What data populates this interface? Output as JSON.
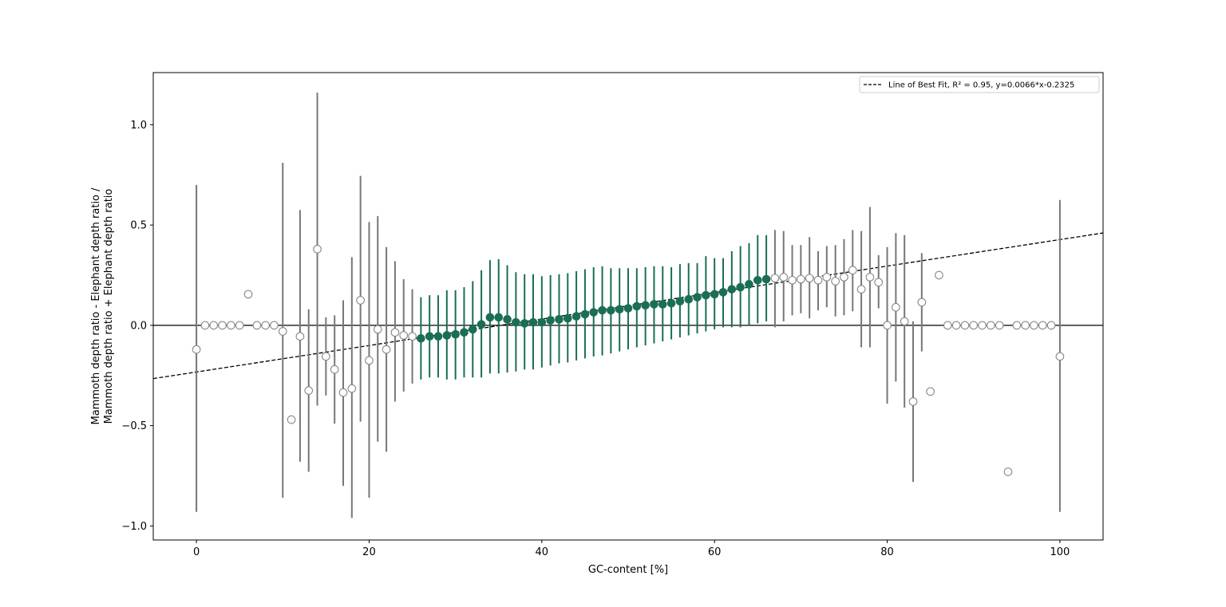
{
  "chart_data": {
    "type": "scatter",
    "title": "",
    "xlabel": "GC-content [%]",
    "ylabel_lines": [
      "Mammoth depth ratio - Elephant depth ratio /",
      "Mammoth depth ratio + Elephant depth ratio"
    ],
    "xlim": [
      -5,
      105
    ],
    "ylim": [
      -1.07,
      1.26
    ],
    "x_ticks": [
      0,
      20,
      40,
      60,
      80,
      100
    ],
    "x_tick_labels": [
      "0",
      "20",
      "40",
      "60",
      "80",
      "100"
    ],
    "y_ticks": [
      -1.0,
      -0.5,
      0.0,
      0.5,
      1.0
    ],
    "y_tick_labels": [
      "−1.0",
      "−0.5",
      "0.0",
      "0.5",
      "1.0"
    ],
    "grid": false,
    "legend": {
      "placement": "top-right",
      "entries": [
        "Line of Best Fit, R² = 0.95, y=0.0066*x-0.2325"
      ]
    },
    "fit_line": {
      "slope": 0.0066,
      "intercept": -0.2325,
      "style": "dashed",
      "color": "#000000"
    },
    "zero_line": {
      "y": 0.0,
      "color": "#000000"
    },
    "colors": {
      "fit_range": "#1b6e56",
      "outside": "#777777",
      "open_marker_edge": "#888888"
    },
    "points": [
      {
        "x": 0,
        "y": -0.12,
        "lo": -0.93,
        "hi": 0.7,
        "in_fit": false
      },
      {
        "x": 1,
        "y": 0.0,
        "lo": null,
        "hi": null,
        "in_fit": false
      },
      {
        "x": 2,
        "y": 0.0,
        "lo": null,
        "hi": null,
        "in_fit": false
      },
      {
        "x": 3,
        "y": 0.0,
        "lo": null,
        "hi": null,
        "in_fit": false
      },
      {
        "x": 4,
        "y": 0.0,
        "lo": null,
        "hi": null,
        "in_fit": false
      },
      {
        "x": 5,
        "y": 0.0,
        "lo": null,
        "hi": null,
        "in_fit": false
      },
      {
        "x": 6,
        "y": 0.155,
        "lo": null,
        "hi": null,
        "in_fit": false
      },
      {
        "x": 7,
        "y": 0.0,
        "lo": null,
        "hi": null,
        "in_fit": false
      },
      {
        "x": 8,
        "y": 0.0,
        "lo": null,
        "hi": null,
        "in_fit": false
      },
      {
        "x": 9,
        "y": 0.0,
        "lo": null,
        "hi": null,
        "in_fit": false
      },
      {
        "x": 10,
        "y": -0.03,
        "lo": -0.86,
        "hi": 0.81,
        "in_fit": false
      },
      {
        "x": 11,
        "y": -0.47,
        "lo": null,
        "hi": null,
        "in_fit": false
      },
      {
        "x": 12,
        "y": -0.055,
        "lo": -0.68,
        "hi": 0.575,
        "in_fit": false
      },
      {
        "x": 13,
        "y": -0.325,
        "lo": -0.73,
        "hi": 0.08,
        "in_fit": false
      },
      {
        "x": 14,
        "y": 0.38,
        "lo": -0.4,
        "hi": 1.16,
        "in_fit": false
      },
      {
        "x": 15,
        "y": -0.155,
        "lo": -0.35,
        "hi": 0.04,
        "in_fit": false
      },
      {
        "x": 16,
        "y": -0.22,
        "lo": -0.49,
        "hi": 0.05,
        "in_fit": false
      },
      {
        "x": 17,
        "y": -0.335,
        "lo": -0.8,
        "hi": 0.125,
        "in_fit": false
      },
      {
        "x": 18,
        "y": -0.315,
        "lo": -0.96,
        "hi": 0.34,
        "in_fit": false
      },
      {
        "x": 19,
        "y": 0.125,
        "lo": -0.48,
        "hi": 0.745,
        "in_fit": false
      },
      {
        "x": 20,
        "y": -0.175,
        "lo": -0.86,
        "hi": 0.515,
        "in_fit": false
      },
      {
        "x": 21,
        "y": -0.02,
        "lo": -0.58,
        "hi": 0.545,
        "in_fit": false
      },
      {
        "x": 22,
        "y": -0.12,
        "lo": -0.63,
        "hi": 0.39,
        "in_fit": false
      },
      {
        "x": 23,
        "y": -0.035,
        "lo": -0.38,
        "hi": 0.32,
        "in_fit": false
      },
      {
        "x": 24,
        "y": -0.05,
        "lo": -0.33,
        "hi": 0.23,
        "in_fit": false
      },
      {
        "x": 25,
        "y": -0.055,
        "lo": -0.29,
        "hi": 0.18,
        "in_fit": false
      },
      {
        "x": 26,
        "y": -0.065,
        "lo": -0.27,
        "hi": 0.14,
        "in_fit": true
      },
      {
        "x": 27,
        "y": -0.055,
        "lo": -0.26,
        "hi": 0.15,
        "in_fit": true
      },
      {
        "x": 28,
        "y": -0.055,
        "lo": -0.26,
        "hi": 0.15,
        "in_fit": true
      },
      {
        "x": 29,
        "y": -0.05,
        "lo": -0.27,
        "hi": 0.175,
        "in_fit": true
      },
      {
        "x": 30,
        "y": -0.045,
        "lo": -0.27,
        "hi": 0.175,
        "in_fit": true
      },
      {
        "x": 31,
        "y": -0.035,
        "lo": -0.26,
        "hi": 0.19,
        "in_fit": true
      },
      {
        "x": 32,
        "y": -0.02,
        "lo": -0.26,
        "hi": 0.22,
        "in_fit": true
      },
      {
        "x": 33,
        "y": 0.005,
        "lo": -0.26,
        "hi": 0.275,
        "in_fit": true
      },
      {
        "x": 34,
        "y": 0.04,
        "lo": -0.24,
        "hi": 0.325,
        "in_fit": true
      },
      {
        "x": 35,
        "y": 0.04,
        "lo": -0.24,
        "hi": 0.33,
        "in_fit": true
      },
      {
        "x": 36,
        "y": 0.03,
        "lo": -0.235,
        "hi": 0.3,
        "in_fit": true
      },
      {
        "x": 37,
        "y": 0.015,
        "lo": -0.23,
        "hi": 0.265,
        "in_fit": true
      },
      {
        "x": 38,
        "y": 0.01,
        "lo": -0.22,
        "hi": 0.255,
        "in_fit": true
      },
      {
        "x": 39,
        "y": 0.015,
        "lo": -0.22,
        "hi": 0.255,
        "in_fit": true
      },
      {
        "x": 40,
        "y": 0.015,
        "lo": -0.21,
        "hi": 0.245,
        "in_fit": true
      },
      {
        "x": 41,
        "y": 0.025,
        "lo": -0.2,
        "hi": 0.25,
        "in_fit": true
      },
      {
        "x": 42,
        "y": 0.03,
        "lo": -0.19,
        "hi": 0.255,
        "in_fit": true
      },
      {
        "x": 43,
        "y": 0.035,
        "lo": -0.185,
        "hi": 0.26,
        "in_fit": true
      },
      {
        "x": 44,
        "y": 0.045,
        "lo": -0.175,
        "hi": 0.27,
        "in_fit": true
      },
      {
        "x": 45,
        "y": 0.055,
        "lo": -0.165,
        "hi": 0.28,
        "in_fit": true
      },
      {
        "x": 46,
        "y": 0.065,
        "lo": -0.155,
        "hi": 0.29,
        "in_fit": true
      },
      {
        "x": 47,
        "y": 0.075,
        "lo": -0.15,
        "hi": 0.295,
        "in_fit": true
      },
      {
        "x": 48,
        "y": 0.075,
        "lo": -0.14,
        "hi": 0.285,
        "in_fit": true
      },
      {
        "x": 49,
        "y": 0.08,
        "lo": -0.13,
        "hi": 0.285,
        "in_fit": true
      },
      {
        "x": 50,
        "y": 0.085,
        "lo": -0.12,
        "hi": 0.285,
        "in_fit": true
      },
      {
        "x": 51,
        "y": 0.095,
        "lo": -0.11,
        "hi": 0.285,
        "in_fit": true
      },
      {
        "x": 52,
        "y": 0.1,
        "lo": -0.1,
        "hi": 0.29,
        "in_fit": true
      },
      {
        "x": 53,
        "y": 0.105,
        "lo": -0.09,
        "hi": 0.295,
        "in_fit": true
      },
      {
        "x": 54,
        "y": 0.105,
        "lo": -0.08,
        "hi": 0.295,
        "in_fit": true
      },
      {
        "x": 55,
        "y": 0.11,
        "lo": -0.07,
        "hi": 0.29,
        "in_fit": true
      },
      {
        "x": 56,
        "y": 0.12,
        "lo": -0.06,
        "hi": 0.305,
        "in_fit": true
      },
      {
        "x": 57,
        "y": 0.13,
        "lo": -0.05,
        "hi": 0.31,
        "in_fit": true
      },
      {
        "x": 58,
        "y": 0.14,
        "lo": -0.04,
        "hi": 0.31,
        "in_fit": true
      },
      {
        "x": 59,
        "y": 0.15,
        "lo": -0.03,
        "hi": 0.345,
        "in_fit": true
      },
      {
        "x": 60,
        "y": 0.155,
        "lo": -0.02,
        "hi": 0.335,
        "in_fit": true
      },
      {
        "x": 61,
        "y": 0.165,
        "lo": -0.01,
        "hi": 0.335,
        "in_fit": true
      },
      {
        "x": 62,
        "y": 0.18,
        "lo": -0.01,
        "hi": 0.37,
        "in_fit": true
      },
      {
        "x": 63,
        "y": 0.19,
        "lo": -0.01,
        "hi": 0.395,
        "in_fit": true
      },
      {
        "x": 64,
        "y": 0.205,
        "lo": 0.0,
        "hi": 0.41,
        "in_fit": true
      },
      {
        "x": 65,
        "y": 0.225,
        "lo": 0.01,
        "hi": 0.45,
        "in_fit": true
      },
      {
        "x": 66,
        "y": 0.23,
        "lo": 0.02,
        "hi": 0.45,
        "in_fit": true
      },
      {
        "x": 67,
        "y": 0.235,
        "lo": -0.01,
        "hi": 0.475,
        "in_fit": false
      },
      {
        "x": 68,
        "y": 0.24,
        "lo": 0.02,
        "hi": 0.47,
        "in_fit": false
      },
      {
        "x": 69,
        "y": 0.225,
        "lo": 0.05,
        "hi": 0.4,
        "in_fit": false
      },
      {
        "x": 70,
        "y": 0.23,
        "lo": 0.06,
        "hi": 0.4,
        "in_fit": false
      },
      {
        "x": 71,
        "y": 0.235,
        "lo": 0.035,
        "hi": 0.44,
        "in_fit": false
      },
      {
        "x": 72,
        "y": 0.225,
        "lo": 0.075,
        "hi": 0.37,
        "in_fit": false
      },
      {
        "x": 73,
        "y": 0.24,
        "lo": 0.09,
        "hi": 0.395,
        "in_fit": false
      },
      {
        "x": 74,
        "y": 0.22,
        "lo": 0.045,
        "hi": 0.4,
        "in_fit": false
      },
      {
        "x": 75,
        "y": 0.24,
        "lo": 0.05,
        "hi": 0.43,
        "in_fit": false
      },
      {
        "x": 76,
        "y": 0.275,
        "lo": 0.07,
        "hi": 0.475,
        "in_fit": false
      },
      {
        "x": 77,
        "y": 0.18,
        "lo": -0.11,
        "hi": 0.47,
        "in_fit": false
      },
      {
        "x": 78,
        "y": 0.24,
        "lo": -0.11,
        "hi": 0.59,
        "in_fit": false
      },
      {
        "x": 79,
        "y": 0.215,
        "lo": 0.085,
        "hi": 0.35,
        "in_fit": false
      },
      {
        "x": 80,
        "y": 0.0,
        "lo": -0.39,
        "hi": 0.39,
        "in_fit": false
      },
      {
        "x": 81,
        "y": 0.09,
        "lo": -0.28,
        "hi": 0.46,
        "in_fit": false
      },
      {
        "x": 82,
        "y": 0.02,
        "lo": -0.41,
        "hi": 0.45,
        "in_fit": false
      },
      {
        "x": 83,
        "y": -0.38,
        "lo": -0.78,
        "hi": 0.02,
        "in_fit": false
      },
      {
        "x": 84,
        "y": 0.115,
        "lo": -0.13,
        "hi": 0.36,
        "in_fit": false
      },
      {
        "x": 85,
        "y": -0.33,
        "lo": null,
        "hi": null,
        "in_fit": false
      },
      {
        "x": 86,
        "y": 0.25,
        "lo": null,
        "hi": null,
        "in_fit": false
      },
      {
        "x": 87,
        "y": 0.0,
        "lo": null,
        "hi": null,
        "in_fit": false
      },
      {
        "x": 88,
        "y": 0.0,
        "lo": null,
        "hi": null,
        "in_fit": false
      },
      {
        "x": 89,
        "y": 0.0,
        "lo": null,
        "hi": null,
        "in_fit": false
      },
      {
        "x": 90,
        "y": 0.0,
        "lo": null,
        "hi": null,
        "in_fit": false
      },
      {
        "x": 91,
        "y": 0.0,
        "lo": null,
        "hi": null,
        "in_fit": false
      },
      {
        "x": 92,
        "y": 0.0,
        "lo": null,
        "hi": null,
        "in_fit": false
      },
      {
        "x": 93,
        "y": 0.0,
        "lo": null,
        "hi": null,
        "in_fit": false
      },
      {
        "x": 94,
        "y": -0.73,
        "lo": null,
        "hi": null,
        "in_fit": false
      },
      {
        "x": 95,
        "y": 0.0,
        "lo": null,
        "hi": null,
        "in_fit": false
      },
      {
        "x": 96,
        "y": 0.0,
        "lo": null,
        "hi": null,
        "in_fit": false
      },
      {
        "x": 97,
        "y": 0.0,
        "lo": null,
        "hi": null,
        "in_fit": false
      },
      {
        "x": 98,
        "y": 0.0,
        "lo": null,
        "hi": null,
        "in_fit": false
      },
      {
        "x": 99,
        "y": 0.0,
        "lo": null,
        "hi": null,
        "in_fit": false
      },
      {
        "x": 100,
        "y": -0.155,
        "lo": -0.93,
        "hi": 0.625,
        "in_fit": false
      }
    ]
  }
}
